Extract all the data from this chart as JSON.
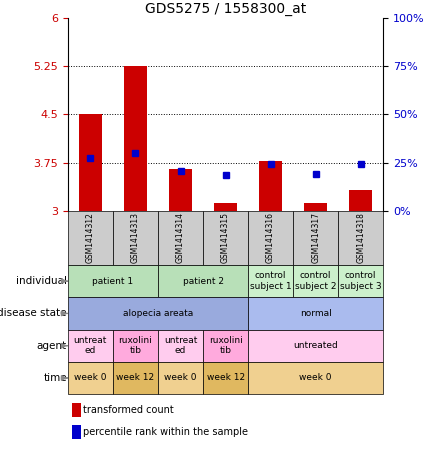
{
  "title": "GDS5275 / 1558300_at",
  "samples": [
    "GSM1414312",
    "GSM1414313",
    "GSM1414314",
    "GSM1414315",
    "GSM1414316",
    "GSM1414317",
    "GSM1414318"
  ],
  "red_values": [
    4.5,
    5.25,
    3.65,
    3.12,
    3.78,
    3.12,
    3.32
  ],
  "blue_values": [
    3.82,
    3.9,
    3.62,
    3.55,
    3.72,
    3.57,
    3.72
  ],
  "ylim": [
    3.0,
    6.0
  ],
  "yticks_left": [
    3,
    3.75,
    4.5,
    5.25,
    6
  ],
  "yticks_right": [
    0,
    25,
    50,
    75,
    100
  ],
  "grid_lines": [
    5.25,
    4.5,
    3.75
  ],
  "bar_width": 0.5,
  "left_color": "#cc0000",
  "blue_color": "#0000cc",
  "individual_groups": [
    {
      "label": "patient 1",
      "span": [
        0,
        1
      ],
      "color": "#b8e0b8"
    },
    {
      "label": "patient 2",
      "span": [
        2,
        3
      ],
      "color": "#b8e0b8"
    },
    {
      "label": "control\nsubject 1",
      "span": [
        4,
        4
      ],
      "color": "#ccf0cc"
    },
    {
      "label": "control\nsubject 2",
      "span": [
        5,
        5
      ],
      "color": "#ccf0cc"
    },
    {
      "label": "control\nsubject 3",
      "span": [
        6,
        6
      ],
      "color": "#ccf0cc"
    }
  ],
  "disease_groups": [
    {
      "label": "alopecia areata",
      "span": [
        0,
        3
      ],
      "color": "#99aadd"
    },
    {
      "label": "normal",
      "span": [
        4,
        6
      ],
      "color": "#aabbee"
    }
  ],
  "agent_groups": [
    {
      "label": "untreat\ned",
      "span": [
        0,
        0
      ],
      "color": "#ffccee"
    },
    {
      "label": "ruxolini\ntib",
      "span": [
        1,
        1
      ],
      "color": "#ffaadd"
    },
    {
      "label": "untreat\ned",
      "span": [
        2,
        2
      ],
      "color": "#ffccee"
    },
    {
      "label": "ruxolini\ntib",
      "span": [
        3,
        3
      ],
      "color": "#ffaadd"
    },
    {
      "label": "untreated",
      "span": [
        4,
        6
      ],
      "color": "#ffccee"
    }
  ],
  "time_groups": [
    {
      "label": "week 0",
      "span": [
        0,
        0
      ],
      "color": "#f0d090"
    },
    {
      "label": "week 12",
      "span": [
        1,
        1
      ],
      "color": "#e0b860"
    },
    {
      "label": "week 0",
      "span": [
        2,
        2
      ],
      "color": "#f0d090"
    },
    {
      "label": "week 12",
      "span": [
        3,
        3
      ],
      "color": "#e0b860"
    },
    {
      "label": "week 0",
      "span": [
        4,
        6
      ],
      "color": "#f0d090"
    }
  ],
  "row_labels": [
    "individual",
    "disease state",
    "agent",
    "time"
  ],
  "legend_labels": [
    "transformed count",
    "percentile rank within the sample"
  ],
  "legend_colors": [
    "#cc0000",
    "#0000cc"
  ]
}
